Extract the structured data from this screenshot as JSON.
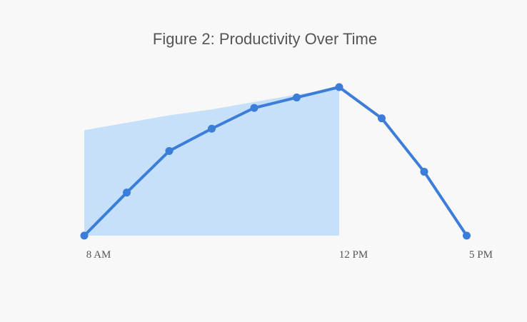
{
  "chart_data": {
    "type": "line",
    "title": "Figure 2: Productivity Over Time",
    "categories": [
      "8 AM",
      null,
      null,
      null,
      null,
      null,
      "12 PM",
      null,
      null,
      "5 PM"
    ],
    "series": [
      {
        "color": "#3b7dd8",
        "values": [
          0,
          29,
          57,
          72,
          86,
          93,
          100,
          79,
          43,
          0
        ]
      }
    ],
    "area": {
      "color": "#c5e0f8",
      "values": [
        71,
        76,
        81,
        85,
        90,
        95,
        99,
        null,
        null,
        null
      ]
    },
    "ylim": [
      0,
      100
    ]
  }
}
